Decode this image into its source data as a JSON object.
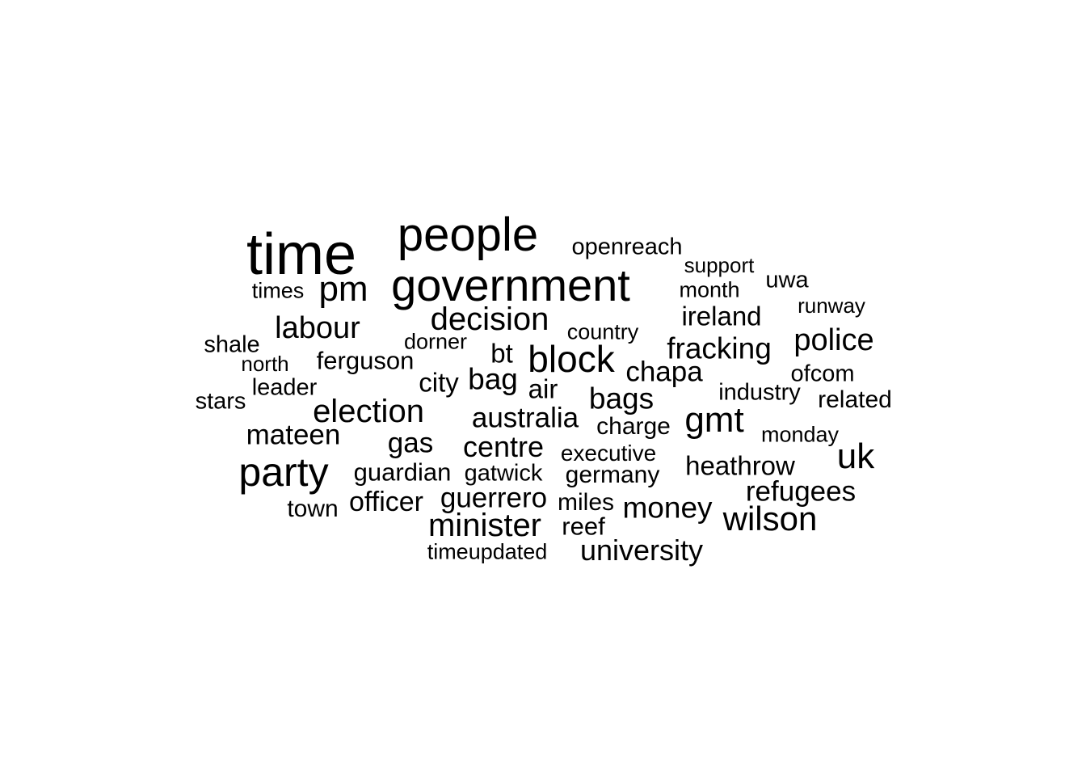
{
  "chart_data": {
    "type": "wordcloud",
    "title": "",
    "text_color": "#000000",
    "background": "#ffffff",
    "words": [
      {
        "text": "time"
      },
      {
        "text": "people"
      },
      {
        "text": "government"
      },
      {
        "text": "openreach"
      },
      {
        "text": "support"
      },
      {
        "text": "uwa"
      },
      {
        "text": "month"
      },
      {
        "text": "times"
      },
      {
        "text": "pm"
      },
      {
        "text": "runway"
      },
      {
        "text": "ireland"
      },
      {
        "text": "decision"
      },
      {
        "text": "labour"
      },
      {
        "text": "country"
      },
      {
        "text": "dorner"
      },
      {
        "text": "police"
      },
      {
        "text": "shale"
      },
      {
        "text": "fracking"
      },
      {
        "text": "bt"
      },
      {
        "text": "block"
      },
      {
        "text": "north"
      },
      {
        "text": "ferguson"
      },
      {
        "text": "chapa"
      },
      {
        "text": "ofcom"
      },
      {
        "text": "leader"
      },
      {
        "text": "city"
      },
      {
        "text": "bag"
      },
      {
        "text": "air"
      },
      {
        "text": "industry"
      },
      {
        "text": "stars"
      },
      {
        "text": "bags"
      },
      {
        "text": "related"
      },
      {
        "text": "election"
      },
      {
        "text": "australia"
      },
      {
        "text": "gmt"
      },
      {
        "text": "charge"
      },
      {
        "text": "mateen"
      },
      {
        "text": "monday"
      },
      {
        "text": "gas"
      },
      {
        "text": "centre"
      },
      {
        "text": "executive"
      },
      {
        "text": "uk"
      },
      {
        "text": "party"
      },
      {
        "text": "heathrow"
      },
      {
        "text": "guardian"
      },
      {
        "text": "gatwick"
      },
      {
        "text": "germany"
      },
      {
        "text": "refugees"
      },
      {
        "text": "guerrero"
      },
      {
        "text": "town"
      },
      {
        "text": "officer"
      },
      {
        "text": "miles"
      },
      {
        "text": "money"
      },
      {
        "text": "wilson"
      },
      {
        "text": "minister"
      },
      {
        "text": "reef"
      },
      {
        "text": "timeupdated"
      },
      {
        "text": "university"
      }
    ]
  }
}
